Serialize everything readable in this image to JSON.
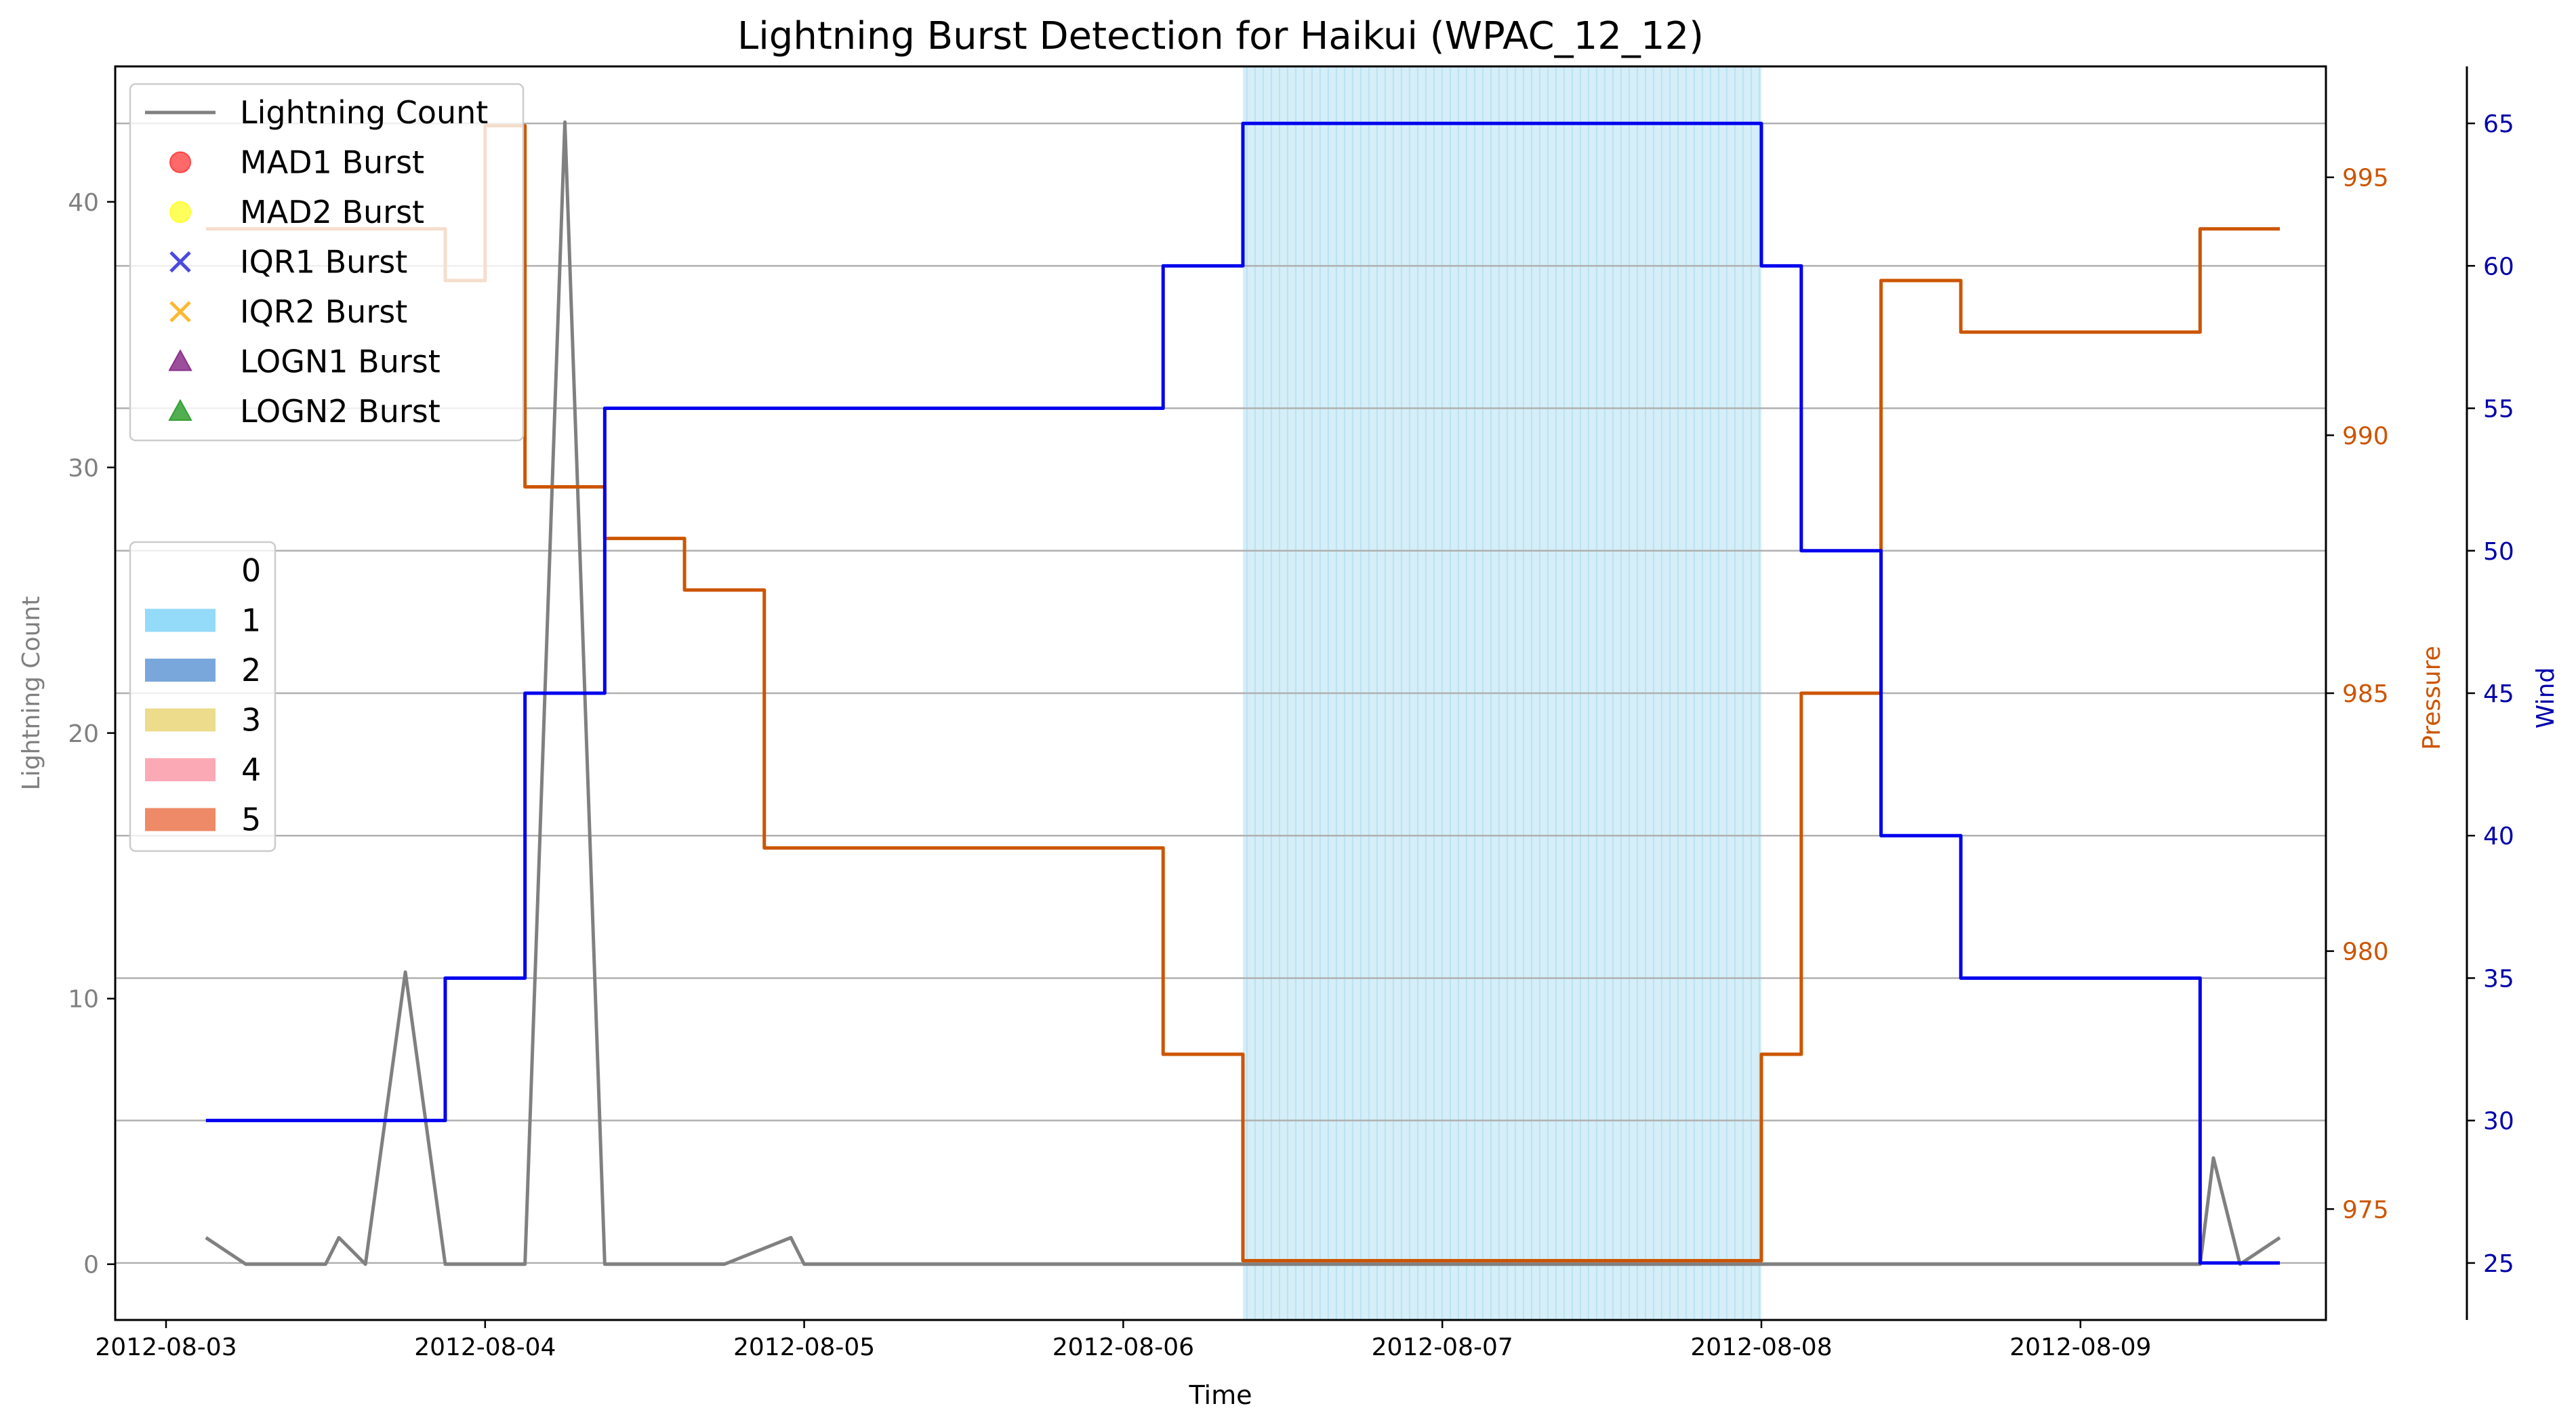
{
  "chart_data": {
    "type": "line",
    "title": "Lightning Burst Detection for Haikui (WPAC_12_12)",
    "xlabel": "Time",
    "x_ticks": [
      "2012-08-03",
      "2012-08-04",
      "2012-08-05",
      "2012-08-06",
      "2012-08-07",
      "2012-08-08",
      "2012-08-09"
    ],
    "axes": {
      "left": {
        "label": "Lightning Count",
        "range": [
          -2.1,
          45.1
        ],
        "ticks": [
          0,
          10,
          20,
          30,
          40
        ],
        "color": "#808080"
      },
      "right1": {
        "label": "Pressure",
        "range": [
          972.85,
          997.15
        ],
        "ticks": [
          975,
          980,
          985,
          990,
          995
        ],
        "color": "#cc5500"
      },
      "right2": {
        "label": "Wind",
        "range": [
          23.0,
          67.0
        ],
        "ticks": [
          25,
          30,
          35,
          40,
          45,
          50,
          55,
          60,
          65
        ],
        "color": "#0000aa"
      }
    },
    "grid": "horizontal lines at wind-axis ticks",
    "series": [
      {
        "name": "Lightning Count",
        "axis": "left",
        "color": "#808080",
        "step": false,
        "x": [
          "2012-08-03 03:00",
          "2012-08-03 06:00",
          "2012-08-03 12:00",
          "2012-08-03 13:00",
          "2012-08-03 15:00",
          "2012-08-03 18:00",
          "2012-08-03 21:00",
          "2012-08-04 00:00",
          "2012-08-04 03:00",
          "2012-08-04 06:00",
          "2012-08-04 09:00",
          "2012-08-04 12:00",
          "2012-08-04 18:00",
          "2012-08-04 23:00",
          "2012-08-05 00:00",
          "2012-08-05 06:00",
          "2012-08-06 00:00",
          "2012-08-07 00:00",
          "2012-08-08 00:00",
          "2012-08-09 00:00",
          "2012-08-09 06:00",
          "2012-08-09 09:00",
          "2012-08-09 10:00",
          "2012-08-09 12:00",
          "2012-08-09 15:00"
        ],
        "y": [
          1,
          0,
          0,
          1,
          0,
          11,
          0,
          0,
          0,
          43,
          0,
          0,
          0,
          1,
          0,
          0,
          0,
          0,
          0,
          0,
          0,
          0,
          4,
          0,
          1
        ]
      },
      {
        "name": "Pressure",
        "axis": "right1",
        "color": "#cc5500",
        "step": true,
        "x": [
          "2012-08-03 03:00",
          "2012-08-03 21:00",
          "2012-08-04 00:00",
          "2012-08-04 03:00",
          "2012-08-04 09:00",
          "2012-08-04 15:00",
          "2012-08-04 21:00",
          "2012-08-06 03:00",
          "2012-08-06 09:00",
          "2012-08-08 00:00",
          "2012-08-08 03:00",
          "2012-08-08 09:00",
          "2012-08-08 15:00",
          "2012-08-09 09:00",
          "2012-08-09 15:00"
        ],
        "y": [
          994,
          993,
          996,
          989,
          988,
          987,
          982,
          978,
          974,
          978,
          985,
          993,
          992,
          994,
          994
        ]
      },
      {
        "name": "Wind",
        "axis": "right2",
        "color": "#0000ee",
        "step": true,
        "x": [
          "2012-08-03 03:00",
          "2012-08-03 21:00",
          "2012-08-04 03:00",
          "2012-08-04 09:00",
          "2012-08-04 21:00",
          "2012-08-06 03:00",
          "2012-08-06 09:00",
          "2012-08-08 00:00",
          "2012-08-08 03:00",
          "2012-08-08 09:00",
          "2012-08-08 15:00",
          "2012-08-09 09:00",
          "2012-08-09 15:00"
        ],
        "y": [
          30,
          35,
          45,
          55,
          55,
          60,
          65,
          60,
          50,
          40,
          35,
          25,
          25
        ]
      }
    ],
    "shaded_regions": [
      {
        "from": "2012-08-06 09:00",
        "to": "2012-08-08 00:00",
        "category": "1",
        "color": "#87ceeb"
      }
    ],
    "legend_markers": {
      "location": "upper left",
      "entries": [
        {
          "label": "Lightning Count",
          "symbol": "line",
          "color": "#808080"
        },
        {
          "label": "MAD1 Burst",
          "symbol": "circle",
          "color": "#ff4444"
        },
        {
          "label": "MAD2 Burst",
          "symbol": "circle",
          "color": "#ffff33"
        },
        {
          "label": "IQR1 Burst",
          "symbol": "x",
          "color": "#4a4ae0"
        },
        {
          "label": "IQR2 Burst",
          "symbol": "x",
          "color": "#ffb833"
        },
        {
          "label": "LOGN1 Burst",
          "symbol": "triangle",
          "color": "#8b2f8b"
        },
        {
          "label": "LOGN2 Burst",
          "symbol": "triangle",
          "color": "#33a033"
        }
      ]
    },
    "legend_categories": {
      "location": "center left",
      "entries": [
        {
          "label": "0",
          "color": "none"
        },
        {
          "label": "1",
          "color": "#94daf9"
        },
        {
          "label": "2",
          "color": "#79a7dc"
        },
        {
          "label": "3",
          "color": "#ecdc8b"
        },
        {
          "label": "4",
          "color": "#fca9b6"
        },
        {
          "label": "5",
          "color": "#ee8a67"
        }
      ]
    }
  }
}
